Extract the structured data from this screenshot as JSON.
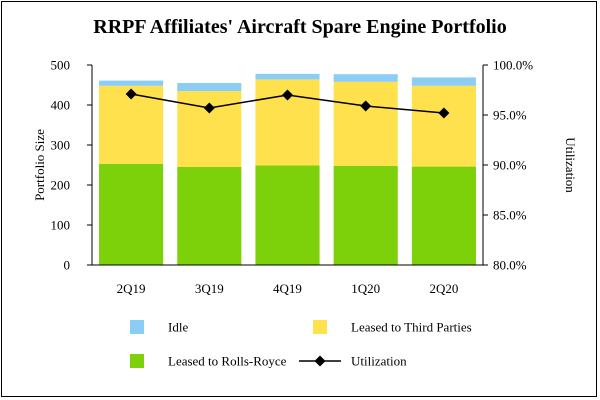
{
  "chart_data": {
    "type": "bar",
    "title": "RRPF Affiliates' Aircraft Spare Engine Portfolio",
    "categories": [
      "2Q19",
      "3Q19",
      "4Q19",
      "1Q20",
      "2Q20"
    ],
    "series": [
      {
        "name": "Leased to Rolls-Royce",
        "color": "#7dd10a",
        "values": [
          253,
          245,
          249,
          248,
          246
        ]
      },
      {
        "name": "Leased to Third Parties",
        "color": "#ffe14d",
        "values": [
          195,
          190,
          215,
          210,
          202
        ]
      },
      {
        "name": "Idle",
        "color": "#8ccdf6",
        "values": [
          13,
          20,
          14,
          19,
          21
        ]
      }
    ],
    "line_series": {
      "name": "Utilization",
      "color": "#000000",
      "values": [
        97.1,
        95.7,
        97.0,
        95.9,
        95.2
      ]
    },
    "ylabel": "Portfolio Size",
    "ylim": [
      0,
      500
    ],
    "yticks": [
      "0",
      "100",
      "200",
      "300",
      "400",
      "500"
    ],
    "y2label": "Utilization",
    "y2lim": [
      80,
      100
    ],
    "y2ticks": [
      "80.0%",
      "85.0%",
      "90.0%",
      "95.0%",
      "100.0%"
    ],
    "legend": {
      "placement": "bottom",
      "items": [
        "Idle",
        "Leased to Third Parties",
        "Leased to Rolls-Royce",
        "Utilization"
      ]
    },
    "grid": false
  }
}
